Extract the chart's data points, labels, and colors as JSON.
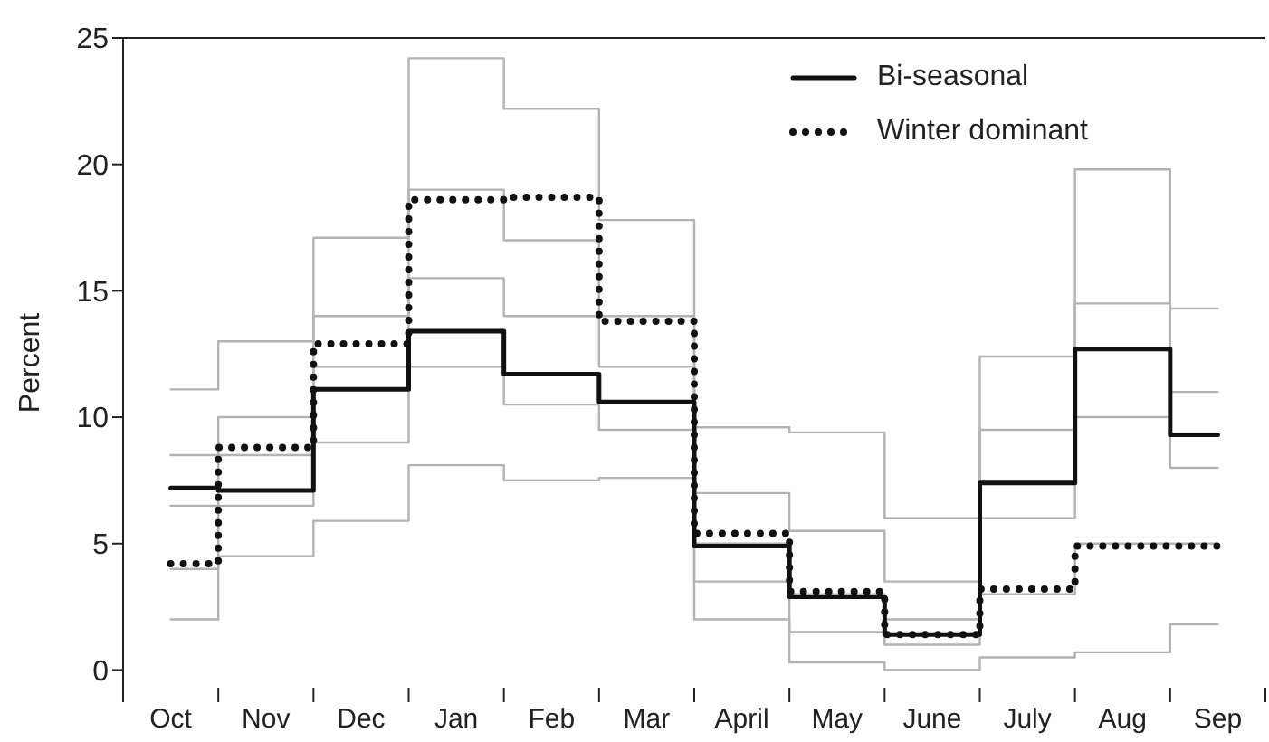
{
  "chart_data": {
    "type": "step",
    "ylabel": "Percent",
    "categories": [
      "Oct",
      "Nov",
      "Dec",
      "Jan",
      "Feb",
      "Mar",
      "April",
      "May",
      "June",
      "July",
      "Aug",
      "Sep"
    ],
    "ylim": [
      -0.7,
      25
    ],
    "yticks": [
      0,
      5,
      10,
      15,
      20,
      25
    ],
    "grid": false,
    "legend": "top right",
    "marker": "none",
    "series": [
      {
        "color": "#b3b3b3",
        "values": [
          11.1,
          13.0,
          17.1,
          24.2,
          22.2,
          17.8,
          9.6,
          9.4,
          6.0,
          12.4,
          19.8,
          14.3
        ]
      },
      {
        "color": "#b3b3b3",
        "values": [
          8.5,
          10.0,
          14.0,
          19.0,
          17.0,
          14.0,
          7.0,
          5.5,
          3.5,
          9.5,
          14.5,
          11.0
        ]
      },
      {
        "color": "#b3b3b3",
        "values": [
          6.5,
          8.5,
          12.0,
          15.5,
          14.0,
          12.0,
          5.0,
          3.0,
          2.0,
          6.0,
          10.0,
          8.0
        ]
      },
      {
        "color": "#b3b3b3",
        "values": [
          4.0,
          6.5,
          9.0,
          12.0,
          10.5,
          9.5,
          3.5,
          1.5,
          1.0,
          3.0,
          5.0,
          5.0
        ]
      },
      {
        "color": "#b3b3b3",
        "values": [
          2.0,
          4.5,
          5.9,
          8.1,
          7.5,
          7.6,
          2.0,
          0.3,
          0.0,
          0.5,
          0.7,
          1.8
        ]
      },
      {
        "name": "Bi-seasonal",
        "color": "#111111",
        "line_style": "solid",
        "values": [
          7.2,
          7.1,
          11.1,
          13.4,
          11.7,
          10.6,
          4.9,
          2.9,
          1.4,
          7.4,
          12.7,
          9.3
        ]
      },
      {
        "name": "Winter dominant",
        "color": "#111111",
        "line_style": "dotted",
        "values": [
          4.2,
          8.8,
          12.9,
          18.6,
          18.7,
          13.8,
          5.4,
          3.1,
          1.4,
          3.2,
          4.9,
          4.9
        ]
      }
    ]
  }
}
